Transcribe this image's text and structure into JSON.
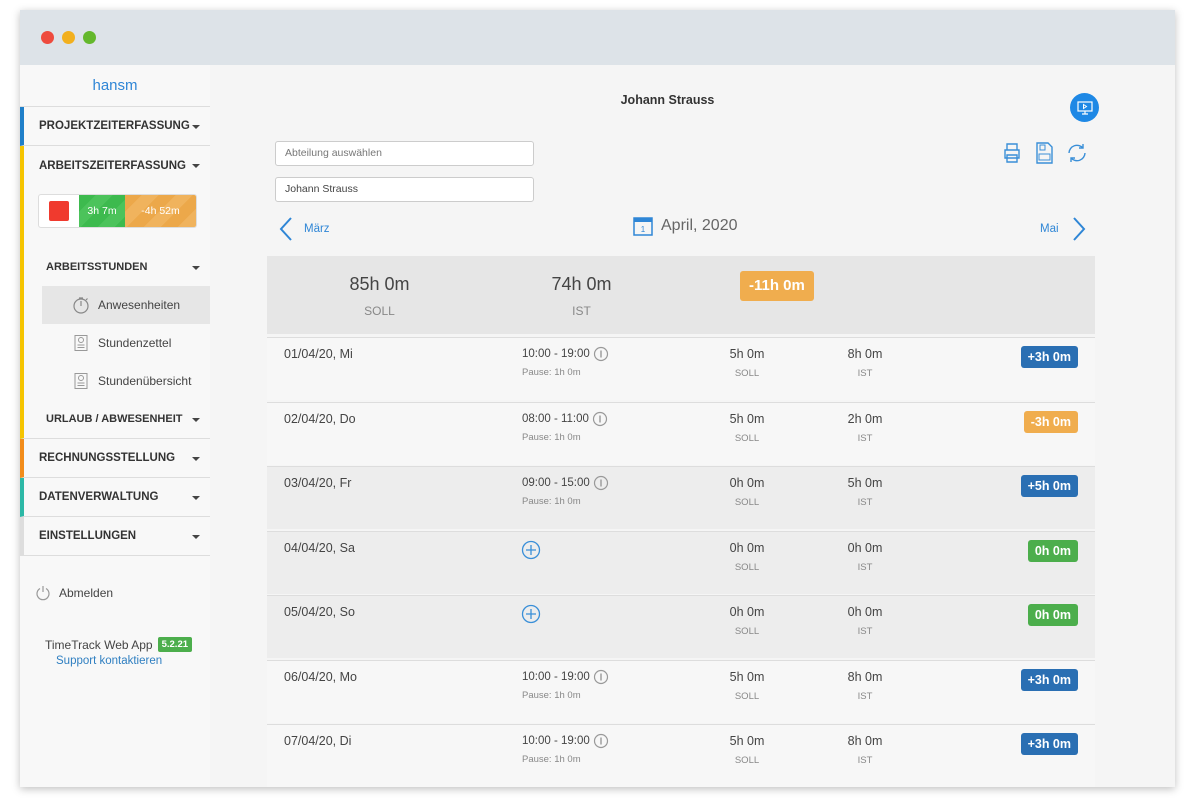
{
  "sidebar": {
    "user": "hansm",
    "sections": [
      {
        "label": "PROJEKTZEITERFASSUNG",
        "color": "#1f7fc9"
      },
      {
        "label": "ARBEITSZEITERFASSUNG",
        "color": "#f5c400"
      },
      {
        "label": "RECHNUNGSSTELLUNG",
        "color": "#f28c1a"
      },
      {
        "label": "DATENVERWALTUNG",
        "color": "#2cb8a6"
      },
      {
        "label": "EINSTELLUNGEN",
        "color": "#dddddd"
      }
    ],
    "timer": {
      "worked": "3h 7m",
      "remaining": "-4h 52m"
    },
    "sub_arbeitsstunden": "ARBEITSSTUNDEN",
    "items": [
      {
        "label": "Anwesenheiten",
        "icon": "stopwatch-icon"
      },
      {
        "label": "Stundenzettel",
        "icon": "document-icon"
      },
      {
        "label": "Stundenübersicht",
        "icon": "document-icon"
      }
    ],
    "sub_urlaub": "URLAUB / ABWESENHEIT",
    "logout": "Abmelden",
    "app_name": "TimeTrack Web App",
    "version": "5.2.21",
    "support": "Support kontaktieren"
  },
  "main": {
    "title": "Johann Strauss",
    "department_placeholder": "Abteilung auswählen",
    "employee_value": "Johann Strauss",
    "prev_month": "März",
    "month": "April, 2020",
    "next_month": "Mai",
    "summary": {
      "soll": "85h 0m",
      "soll_label": "SOLL",
      "ist": "74h 0m",
      "ist_label": "IST",
      "diff": "-11h 0m"
    },
    "rows": [
      {
        "date": "01/04/20, Mi",
        "time": "10:00 - 19:00",
        "pause": "Pause: 1h 0m",
        "soll": "5h 0m",
        "ist": "8h 0m",
        "diff": "+3h 0m",
        "color": "#2a6fb3",
        "grey": false
      },
      {
        "date": "02/04/20, Do",
        "time": "08:00 - 11:00",
        "pause": "Pause: 1h 0m",
        "soll": "5h 0m",
        "ist": "2h 0m",
        "diff": "-3h 0m",
        "color": "#f0ad4e",
        "grey": false
      },
      {
        "date": "03/04/20, Fr",
        "time": "09:00 - 15:00",
        "pause": "Pause: 1h 0m",
        "soll": "0h 0m",
        "ist": "5h 0m",
        "diff": "+5h 0m",
        "color": "#2a6fb3",
        "grey": true
      },
      {
        "date": "04/04/20, Sa",
        "time": "",
        "pause": "",
        "soll": "0h 0m",
        "ist": "0h 0m",
        "diff": "0h 0m",
        "color": "#4cae4c",
        "grey": true
      },
      {
        "date": "05/04/20, So",
        "time": "",
        "pause": "",
        "soll": "0h 0m",
        "ist": "0h 0m",
        "diff": "0h 0m",
        "color": "#4cae4c",
        "grey": true
      },
      {
        "date": "06/04/20, Mo",
        "time": "10:00 - 19:00",
        "pause": "Pause: 1h 0m",
        "soll": "5h 0m",
        "ist": "8h 0m",
        "diff": "+3h 0m",
        "color": "#2a6fb3",
        "grey": false
      },
      {
        "date": "07/04/20, Di",
        "time": "10:00 - 19:00",
        "pause": "Pause: 1h 0m",
        "soll": "5h 0m",
        "ist": "8h 0m",
        "diff": "+3h 0m",
        "color": "#2a6fb3",
        "grey": false
      }
    ],
    "row_soll_label": "SOLL",
    "row_ist_label": "IST"
  }
}
